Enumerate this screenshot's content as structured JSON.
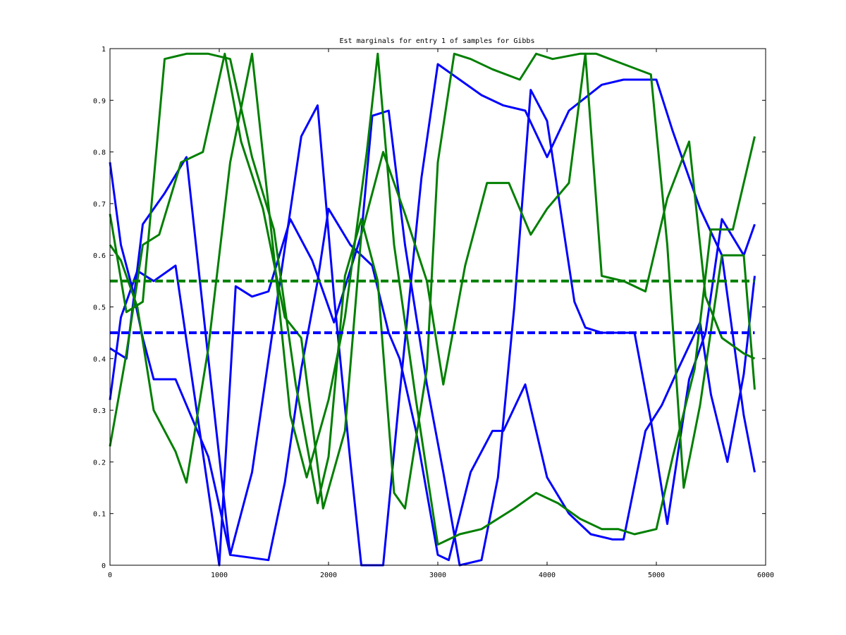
{
  "chart_data": {
    "type": "line",
    "title": "Est marginals for entry 1 of samples for Gibbs",
    "xlabel": "",
    "ylabel": "",
    "xlim": [
      0,
      6000
    ],
    "ylim": [
      0,
      1
    ],
    "xticks": [
      0,
      1000,
      2000,
      3000,
      4000,
      5000,
      6000
    ],
    "yticks": [
      0,
      0.1,
      0.2,
      0.3,
      0.4,
      0.5,
      0.6,
      0.7,
      0.8,
      0.9,
      1
    ],
    "ytick_labels": [
      "0",
      "0.1",
      "0.2",
      "0.3",
      "0.4",
      "0.5",
      "0.6",
      "0.7",
      "0.8",
      "0.9",
      "1"
    ],
    "grid": false,
    "legend": "none",
    "colors": {
      "blue": "#0000ff",
      "green": "#007f00"
    },
    "series": [
      {
        "color": "#0000ff",
        "style": "solid",
        "x": [
          0,
          100,
          200,
          300,
          400,
          600,
          900,
          1100,
          1450,
          1600,
          1750,
          1900,
          2000,
          2200,
          2400,
          2550,
          2650,
          2800,
          3000,
          3100,
          3300,
          3500,
          3600,
          3800,
          4000,
          4200,
          4400,
          4600,
          4700,
          4900,
          5050,
          5200,
          5400,
          5500,
          5650,
          5800,
          5900
        ],
        "y": [
          0.78,
          0.62,
          0.54,
          0.44,
          0.36,
          0.36,
          0.21,
          0.02,
          0.01,
          0.16,
          0.38,
          0.55,
          0.69,
          0.62,
          0.58,
          0.45,
          0.4,
          0.26,
          0.02,
          0.01,
          0.18,
          0.26,
          0.26,
          0.35,
          0.17,
          0.1,
          0.06,
          0.05,
          0.05,
          0.26,
          0.31,
          0.38,
          0.47,
          0.33,
          0.2,
          0.37,
          0.56
        ]
      },
      {
        "color": "#0000ff",
        "style": "solid",
        "x": [
          0,
          150,
          300,
          500,
          700,
          900,
          1100,
          1300,
          1500,
          1750,
          1900,
          2050,
          2200,
          2300,
          2500,
          2650,
          2850,
          3000,
          3200,
          3400,
          3600,
          3800,
          4000,
          4200,
          4500,
          4700,
          5000,
          5150,
          5400,
          5600,
          5800,
          5900
        ],
        "y": [
          0.42,
          0.4,
          0.66,
          0.72,
          0.79,
          0.4,
          0.02,
          0.18,
          0.47,
          0.83,
          0.89,
          0.52,
          0.2,
          0.0,
          0.0,
          0.33,
          0.75,
          0.97,
          0.94,
          0.91,
          0.89,
          0.88,
          0.79,
          0.88,
          0.93,
          0.94,
          0.94,
          0.84,
          0.69,
          0.6,
          0.29,
          0.18
        ]
      },
      {
        "color": "#0000ff",
        "style": "solid",
        "x": [
          0,
          100,
          250,
          400,
          600,
          800,
          1000,
          1150,
          1300,
          1450,
          1650,
          1850,
          2050,
          2300,
          2400,
          2550,
          2700,
          2900,
          3050,
          3200,
          3400,
          3550,
          3700,
          3850,
          4000,
          4250,
          4350,
          4500,
          4800,
          4950,
          5100,
          5300,
          5450,
          5600,
          5800,
          5900
        ],
        "y": [
          0.32,
          0.48,
          0.57,
          0.55,
          0.58,
          0.29,
          0.0,
          0.54,
          0.52,
          0.53,
          0.67,
          0.59,
          0.47,
          0.64,
          0.87,
          0.88,
          0.62,
          0.35,
          0.18,
          0.0,
          0.01,
          0.17,
          0.5,
          0.92,
          0.86,
          0.51,
          0.46,
          0.45,
          0.45,
          0.28,
          0.08,
          0.36,
          0.45,
          0.67,
          0.6,
          0.66
        ]
      },
      {
        "color": "#007f00",
        "style": "solid",
        "x": [
          0,
          100,
          250,
          400,
          600,
          700,
          900,
          1100,
          1300,
          1500,
          1650,
          1800,
          2000,
          2150,
          2350,
          2450,
          2600,
          2800,
          3000,
          3200,
          3400,
          3700,
          3900,
          4100,
          4300,
          4500,
          4650,
          4800,
          5000,
          5150,
          5350,
          5500,
          5700,
          5900
        ],
        "y": [
          0.62,
          0.59,
          0.5,
          0.3,
          0.22,
          0.16,
          0.42,
          0.78,
          0.99,
          0.6,
          0.29,
          0.17,
          0.32,
          0.48,
          0.8,
          0.99,
          0.62,
          0.32,
          0.04,
          0.06,
          0.07,
          0.11,
          0.14,
          0.12,
          0.09,
          0.07,
          0.07,
          0.06,
          0.07,
          0.21,
          0.38,
          0.65,
          0.65,
          0.83
        ]
      },
      {
        "color": "#007f00",
        "style": "solid",
        "x": [
          0,
          150,
          300,
          500,
          700,
          900,
          1100,
          1300,
          1500,
          1700,
          1900,
          2000,
          2150,
          2300,
          2450,
          2600,
          2700,
          2900,
          3000,
          3150,
          3300,
          3500,
          3750,
          3900,
          4050,
          4300,
          4450,
          4700,
          4950,
          5100,
          5250,
          5400,
          5600,
          5800,
          5900
        ],
        "y": [
          0.68,
          0.49,
          0.51,
          0.98,
          0.99,
          0.99,
          0.98,
          0.79,
          0.65,
          0.35,
          0.12,
          0.21,
          0.56,
          0.67,
          0.55,
          0.14,
          0.11,
          0.38,
          0.78,
          0.99,
          0.98,
          0.96,
          0.94,
          0.99,
          0.98,
          0.99,
          0.99,
          0.97,
          0.95,
          0.62,
          0.15,
          0.31,
          0.6,
          0.6,
          0.34
        ]
      },
      {
        "color": "#007f00",
        "style": "solid",
        "x": [
          0,
          150,
          300,
          450,
          650,
          850,
          1050,
          1200,
          1400,
          1600,
          1750,
          1950,
          2150,
          2300,
          2500,
          2700,
          2900,
          3050,
          3250,
          3450,
          3650,
          3850,
          4000,
          4200,
          4350,
          4500,
          4700,
          4900,
          5100,
          5300,
          5450,
          5600,
          5800,
          5900
        ],
        "y": [
          0.23,
          0.41,
          0.62,
          0.64,
          0.78,
          0.8,
          0.99,
          0.82,
          0.69,
          0.48,
          0.44,
          0.11,
          0.26,
          0.64,
          0.8,
          0.68,
          0.55,
          0.35,
          0.58,
          0.74,
          0.74,
          0.64,
          0.69,
          0.74,
          0.99,
          0.56,
          0.55,
          0.53,
          0.71,
          0.82,
          0.52,
          0.44,
          0.41,
          0.4
        ]
      },
      {
        "color": "#007f00",
        "style": "dashed",
        "x": [
          0,
          5900
        ],
        "y": [
          0.55,
          0.55
        ]
      },
      {
        "color": "#0000ff",
        "style": "dashed",
        "x": [
          0,
          5900
        ],
        "y": [
          0.45,
          0.45
        ]
      }
    ]
  }
}
